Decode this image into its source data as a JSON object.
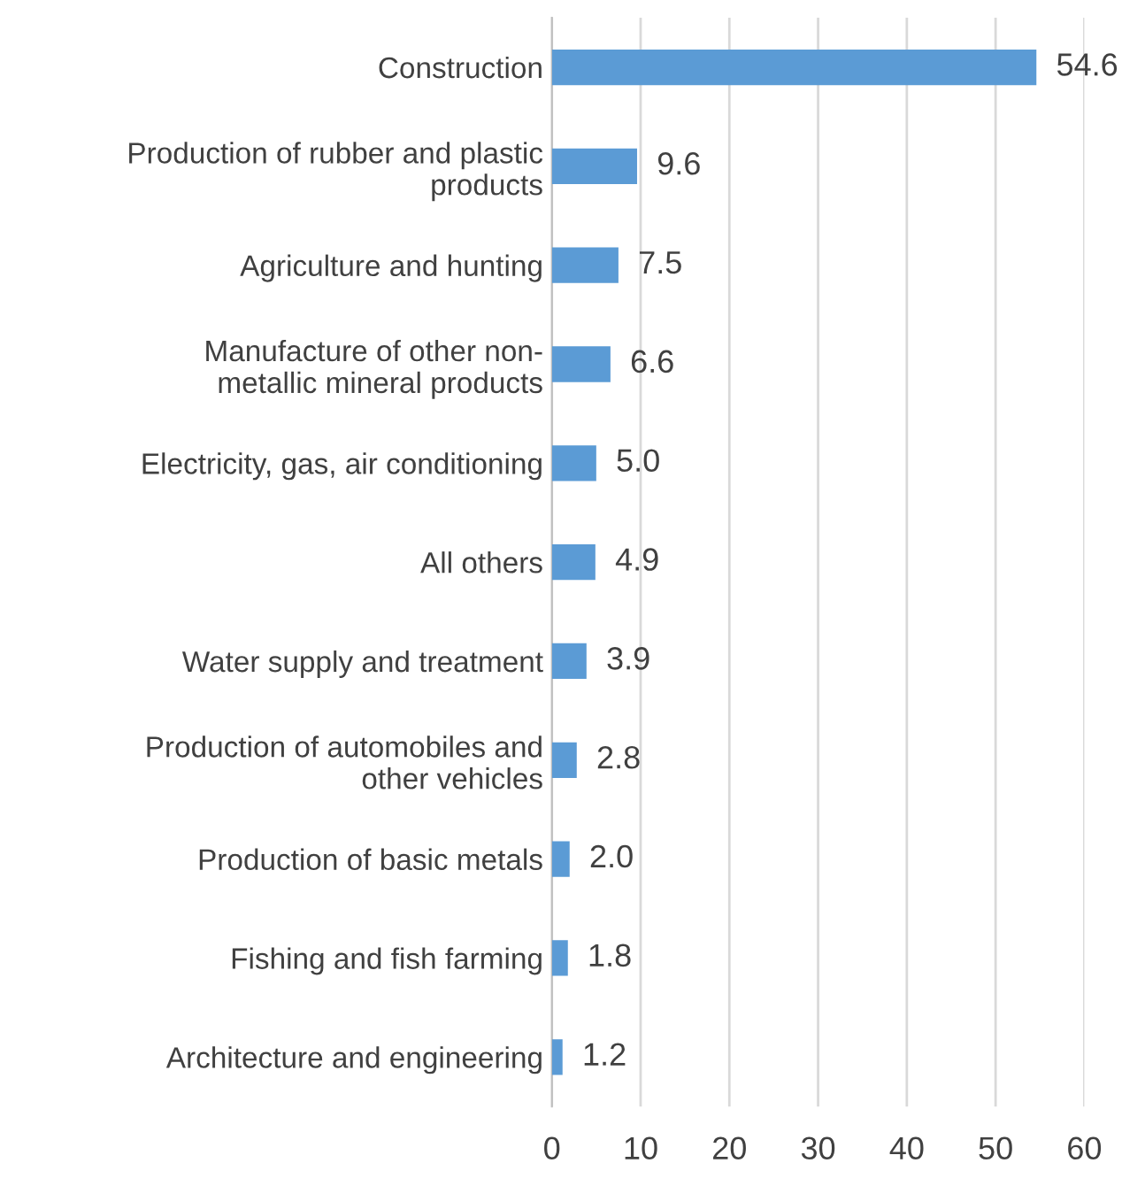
{
  "chart_data": {
    "type": "bar",
    "orientation": "horizontal",
    "categories": [
      "Construction",
      "Production of rubber and plastic\nproducts",
      "Agriculture and hunting",
      "Manufacture of other non-\nmetallic mineral products",
      "Electricity, gas, air conditioning",
      "All others",
      "Water supply and treatment",
      "Production of automobiles and\nother vehicles",
      "Production of basic metals",
      "Fishing and fish farming",
      "Architecture and engineering"
    ],
    "values": [
      54.6,
      9.6,
      7.5,
      6.6,
      5.0,
      4.9,
      3.9,
      2.8,
      2.0,
      1.8,
      1.2
    ],
    "value_labels": [
      "54.6",
      "9.6",
      "7.5",
      "6.6",
      "5.0",
      "4.9",
      "3.9",
      "2.8",
      "2.0",
      "1.8",
      "1.2"
    ],
    "color": "#5b9bd5",
    "xlim": [
      0,
      60
    ],
    "xticks": [
      0,
      10,
      20,
      30,
      40,
      50,
      60
    ],
    "grid": "x",
    "legend": false
  }
}
